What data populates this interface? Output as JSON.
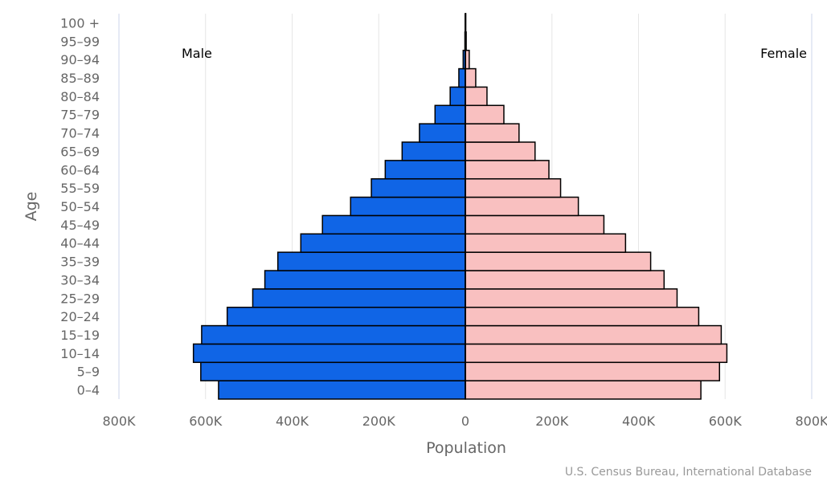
{
  "chart_data": {
    "type": "bar",
    "orientation": "horizontal",
    "subtype": "population-pyramid",
    "xlabel": "Population",
    "ylabel": "Age",
    "xlim": [
      -800000,
      800000
    ],
    "x_ticks": [
      -800000,
      -600000,
      -400000,
      -200000,
      0,
      200000,
      400000,
      600000,
      800000
    ],
    "x_tick_labels": [
      "800K",
      "600K",
      "400K",
      "200K",
      "0",
      "200K",
      "400K",
      "600K",
      "800K"
    ],
    "categories": [
      "0–4",
      "5–9",
      "10–14",
      "15–19",
      "20–24",
      "25–29",
      "30–34",
      "35–39",
      "40–44",
      "45–49",
      "50–54",
      "55–59",
      "60–64",
      "65–69",
      "70–74",
      "75–79",
      "80–84",
      "85–89",
      "90–94",
      "95–99",
      "100 +"
    ],
    "series": [
      {
        "name": "Male",
        "color": "#1065e6",
        "values": [
          570000,
          611000,
          628000,
          609000,
          550000,
          491000,
          463000,
          433000,
          380000,
          330000,
          265000,
          217000,
          185000,
          146000,
          106000,
          70000,
          35000,
          15000,
          5000,
          1000,
          200
        ]
      },
      {
        "name": "Female",
        "color": "#f9c0c0",
        "values": [
          544000,
          587000,
          604000,
          591000,
          539000,
          489000,
          459000,
          428000,
          370000,
          320000,
          261000,
          220000,
          193000,
          161000,
          124000,
          89000,
          50000,
          24000,
          9000,
          2000,
          500
        ]
      }
    ],
    "grid": true,
    "legend": {
      "left_label": "Male",
      "right_label": "Female"
    },
    "credit": "U.S. Census Bureau, International Database"
  }
}
